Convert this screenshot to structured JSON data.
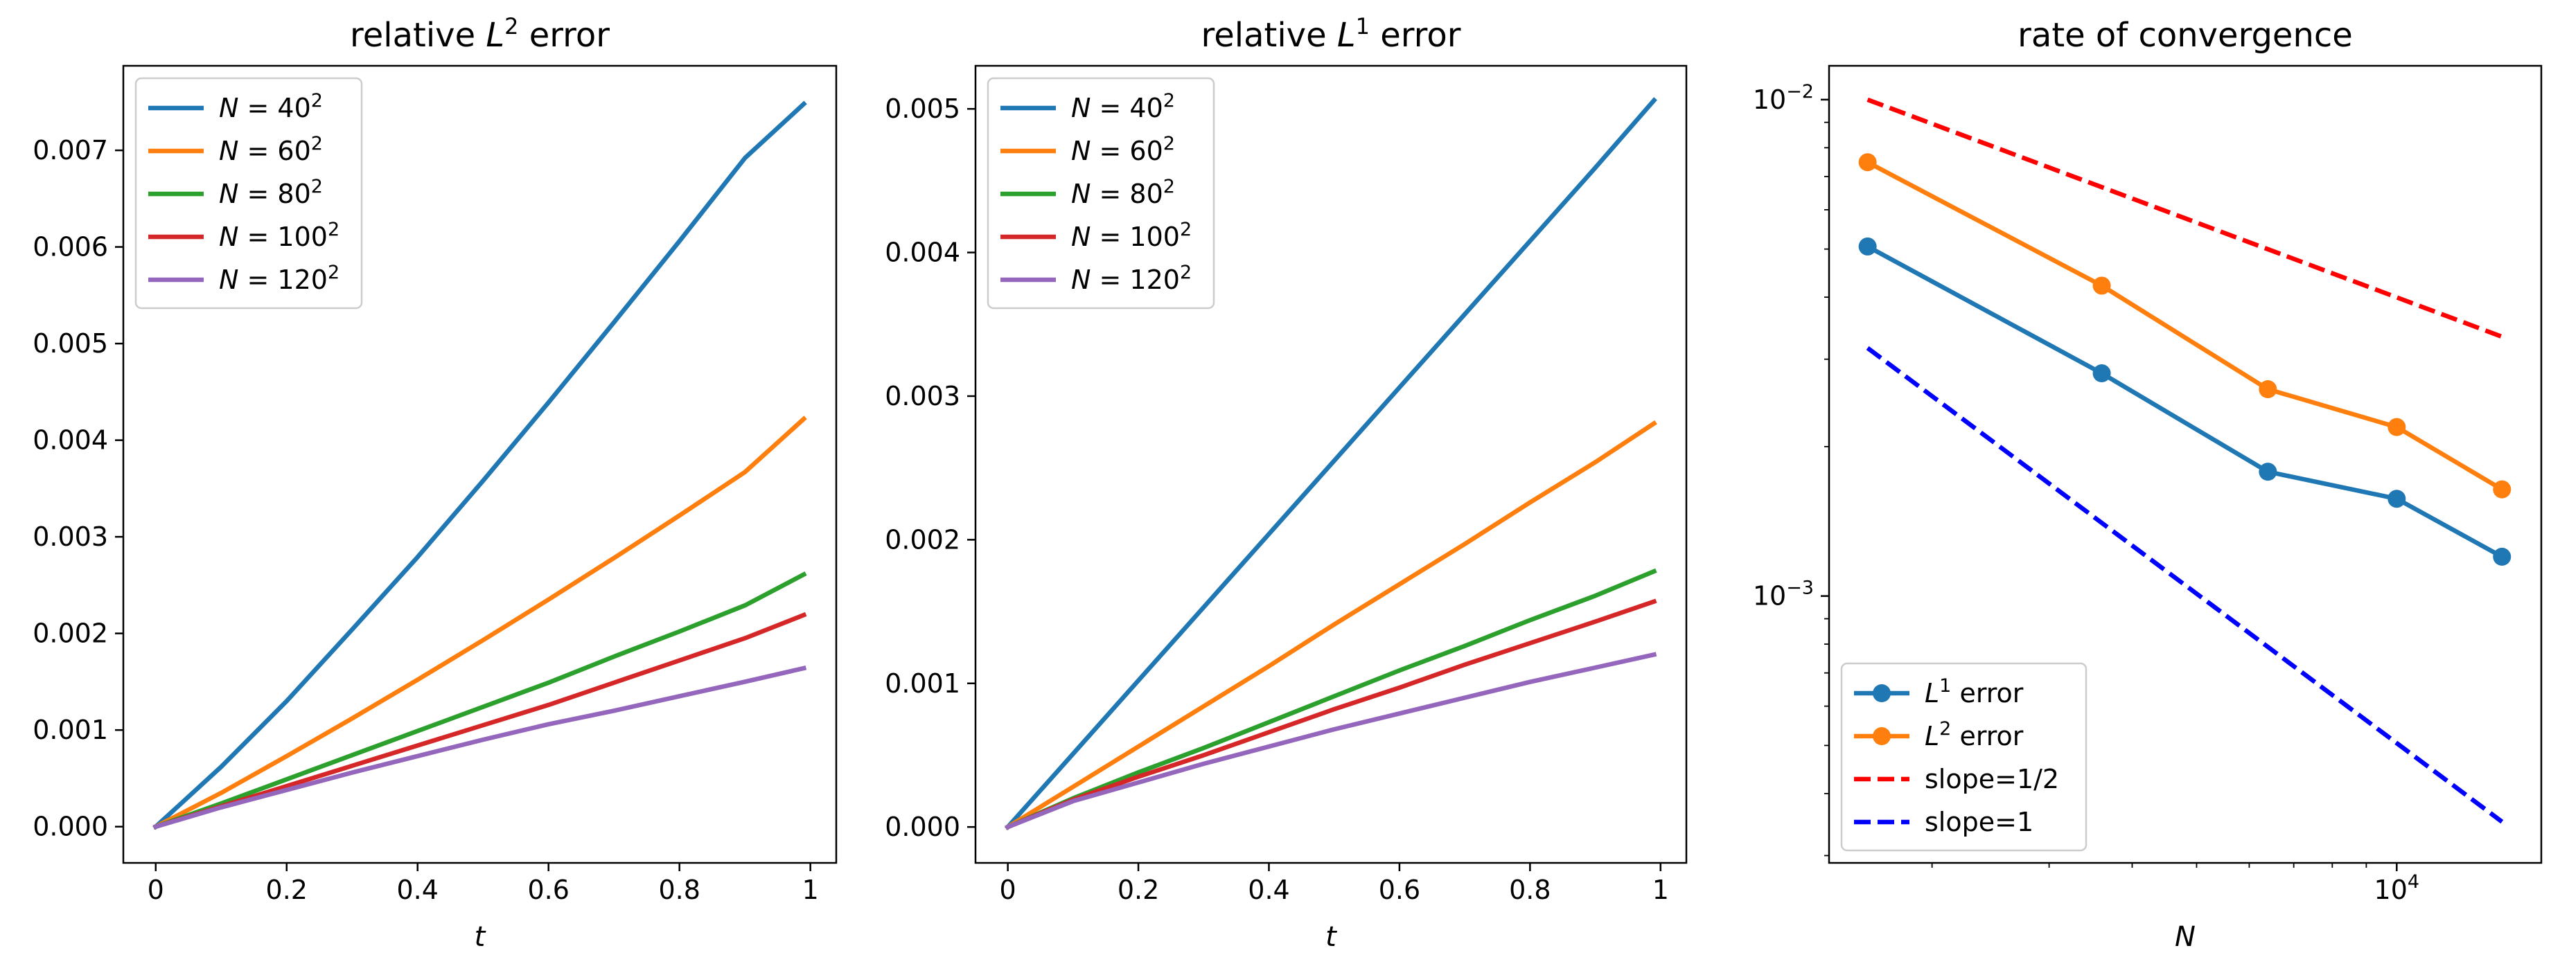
{
  "chart_data": [
    {
      "type": "line",
      "title": "relative L² error",
      "title_parts": [
        "relative ",
        "L",
        "2",
        " error"
      ],
      "xlabel": "t",
      "ylabel": "",
      "xlim": [
        -0.0495,
        1.0395
      ],
      "ylim": [
        -0.000375,
        0.007875
      ],
      "xticks": [
        0,
        0.2,
        0.4,
        0.6,
        0.8,
        1
      ],
      "xtick_labels": [
        "0",
        "0.2",
        "0.4",
        "0.6",
        "0.8",
        "1"
      ],
      "yticks": [
        0,
        0.001,
        0.002,
        0.003,
        0.004,
        0.005,
        0.006,
        0.007
      ],
      "ytick_labels": [
        "0.000",
        "0.001",
        "0.002",
        "0.003",
        "0.004",
        "0.005",
        "0.006",
        "0.007"
      ],
      "legend_position": "top-left",
      "x": [
        0,
        0.1,
        0.2,
        0.3,
        0.4,
        0.5,
        0.6,
        0.7,
        0.8,
        0.9,
        0.99
      ],
      "series": [
        {
          "name": "N = 40²",
          "label_parts": [
            "N",
            " = 40",
            "2"
          ],
          "color": "#1f77b4",
          "values": [
            0,
            0.00062,
            0.0013,
            0.00204,
            0.00279,
            0.00358,
            0.00439,
            0.00522,
            0.00606,
            0.00692,
            0.00748
          ]
        },
        {
          "name": "N = 60²",
          "label_parts": [
            "N",
            " = 60",
            "2"
          ],
          "color": "#ff7f0e",
          "values": [
            0,
            0.00035,
            0.00073,
            0.00112,
            0.00152,
            0.00193,
            0.00235,
            0.00278,
            0.00322,
            0.00367,
            0.00422
          ]
        },
        {
          "name": "N = 80²",
          "label_parts": [
            "N",
            " = 80",
            "2"
          ],
          "color": "#2ca02c",
          "values": [
            0,
            0.00024,
            0.00049,
            0.00074,
            0.00099,
            0.00124,
            0.00149,
            0.00176,
            0.00202,
            0.00229,
            0.00261
          ]
        },
        {
          "name": "N = 100²",
          "label_parts": [
            "N",
            " = 100",
            "2"
          ],
          "color": "#d62728",
          "values": [
            0,
            0.00021,
            0.00042,
            0.00063,
            0.00084,
            0.00105,
            0.00126,
            0.00149,
            0.00172,
            0.00195,
            0.00219
          ]
        },
        {
          "name": "N = 120²",
          "label_parts": [
            "N",
            " = 120",
            "2"
          ],
          "color": "#9467bd",
          "values": [
            0,
            0.0002,
            0.00038,
            0.00056,
            0.00073,
            0.0009,
            0.00106,
            0.0012,
            0.00135,
            0.0015,
            0.00164
          ]
        }
      ]
    },
    {
      "type": "line",
      "title": "relative L¹ error",
      "title_parts": [
        "relative ",
        "L",
        "1",
        " error"
      ],
      "xlabel": "t",
      "ylabel": "",
      "xlim": [
        -0.0495,
        1.0395
      ],
      "ylim": [
        -0.00025,
        0.0053
      ],
      "xticks": [
        0,
        0.2,
        0.4,
        0.6,
        0.8,
        1
      ],
      "xtick_labels": [
        "0",
        "0.2",
        "0.4",
        "0.6",
        "0.8",
        "1"
      ],
      "yticks": [
        0,
        0.001,
        0.002,
        0.003,
        0.004,
        0.005
      ],
      "ytick_labels": [
        "0.000",
        "0.001",
        "0.002",
        "0.003",
        "0.004",
        "0.005"
      ],
      "legend_position": "top-left",
      "x": [
        0,
        0.1,
        0.2,
        0.3,
        0.4,
        0.5,
        0.6,
        0.7,
        0.8,
        0.9,
        0.99
      ],
      "series": [
        {
          "name": "N = 40²",
          "label_parts": [
            "N",
            " = 40",
            "2"
          ],
          "color": "#1f77b4",
          "values": [
            0,
            0.00051,
            0.00102,
            0.00153,
            0.00204,
            0.00255,
            0.00306,
            0.00357,
            0.00408,
            0.00459,
            0.00506
          ]
        },
        {
          "name": "N = 60²",
          "label_parts": [
            "N",
            " = 60",
            "2"
          ],
          "color": "#ff7f0e",
          "values": [
            0,
            0.00028,
            0.00056,
            0.00084,
            0.00112,
            0.00141,
            0.00169,
            0.00197,
            0.00226,
            0.00254,
            0.00281
          ]
        },
        {
          "name": "N = 80²",
          "label_parts": [
            "N",
            " = 80",
            "2"
          ],
          "color": "#2ca02c",
          "values": [
            0,
            0.0002,
            0.00038,
            0.00055,
            0.00073,
            0.00091,
            0.00109,
            0.00126,
            0.00144,
            0.00161,
            0.00178
          ]
        },
        {
          "name": "N = 100²",
          "label_parts": [
            "N",
            " = 100",
            "2"
          ],
          "color": "#d62728",
          "values": [
            0,
            0.00019,
            0.00035,
            0.0005,
            0.00066,
            0.00082,
            0.00097,
            0.00113,
            0.00128,
            0.00143,
            0.00157
          ]
        },
        {
          "name": "N = 120²",
          "label_parts": [
            "N",
            " = 120",
            "2"
          ],
          "color": "#9467bd",
          "values": [
            0,
            0.00018,
            0.00031,
            0.00044,
            0.00056,
            0.00068,
            0.00079,
            0.0009,
            0.00101,
            0.00111,
            0.0012
          ]
        }
      ]
    },
    {
      "type": "line",
      "title": "rate of convergence",
      "xlabel": "N",
      "ylabel": "",
      "xscale": "log",
      "yscale": "log",
      "xlim": [
        1400,
        16500
      ],
      "ylim": [
        0.00029,
        0.0117
      ],
      "xticks": [
        10000
      ],
      "xtick_labels": [
        {
          "base": "10",
          "exp": "4"
        }
      ],
      "yticks": [
        0.001,
        0.01
      ],
      "ytick_labels": [
        {
          "base": "10",
          "exp": "−3"
        },
        {
          "base": "10",
          "exp": "−2"
        }
      ],
      "x_minor_ticks": [
        2000,
        3000,
        4000,
        5000,
        6000,
        7000,
        8000,
        9000
      ],
      "y_minor_ticks": [
        0.0003,
        0.0004,
        0.0005,
        0.0006,
        0.0007,
        0.0008,
        0.0009,
        0.002,
        0.003,
        0.004,
        0.005,
        0.006,
        0.007,
        0.008,
        0.009
      ],
      "legend_position": "bottom-left",
      "x": [
        1600,
        3600,
        6400,
        10000,
        14400
      ],
      "series": [
        {
          "name": "L¹ error",
          "label_parts": [
            "L",
            "1",
            " error"
          ],
          "color": "#1f77b4",
          "style": "solid",
          "marker": true,
          "values": [
            0.00506,
            0.00281,
            0.00178,
            0.00157,
            0.0012
          ]
        },
        {
          "name": "L² error",
          "label_parts": [
            "L",
            "2",
            " error"
          ],
          "color": "#ff7f0e",
          "style": "solid",
          "marker": true,
          "values": [
            0.00748,
            0.00422,
            0.00261,
            0.00219,
            0.00164
          ]
        },
        {
          "name": "slope=1/2",
          "label_parts": [
            "slope=1/2"
          ],
          "color": "#ff0000",
          "style": "dashed",
          "marker": false,
          "x": [
            1600,
            14400
          ],
          "values": [
            0.01,
            0.00333
          ]
        },
        {
          "name": "slope=1",
          "label_parts": [
            "slope=1"
          ],
          "color": "#0000ff",
          "style": "dashed",
          "marker": false,
          "x": [
            1600,
            14400
          ],
          "values": [
            0.00316,
            0.000351
          ]
        }
      ]
    }
  ]
}
